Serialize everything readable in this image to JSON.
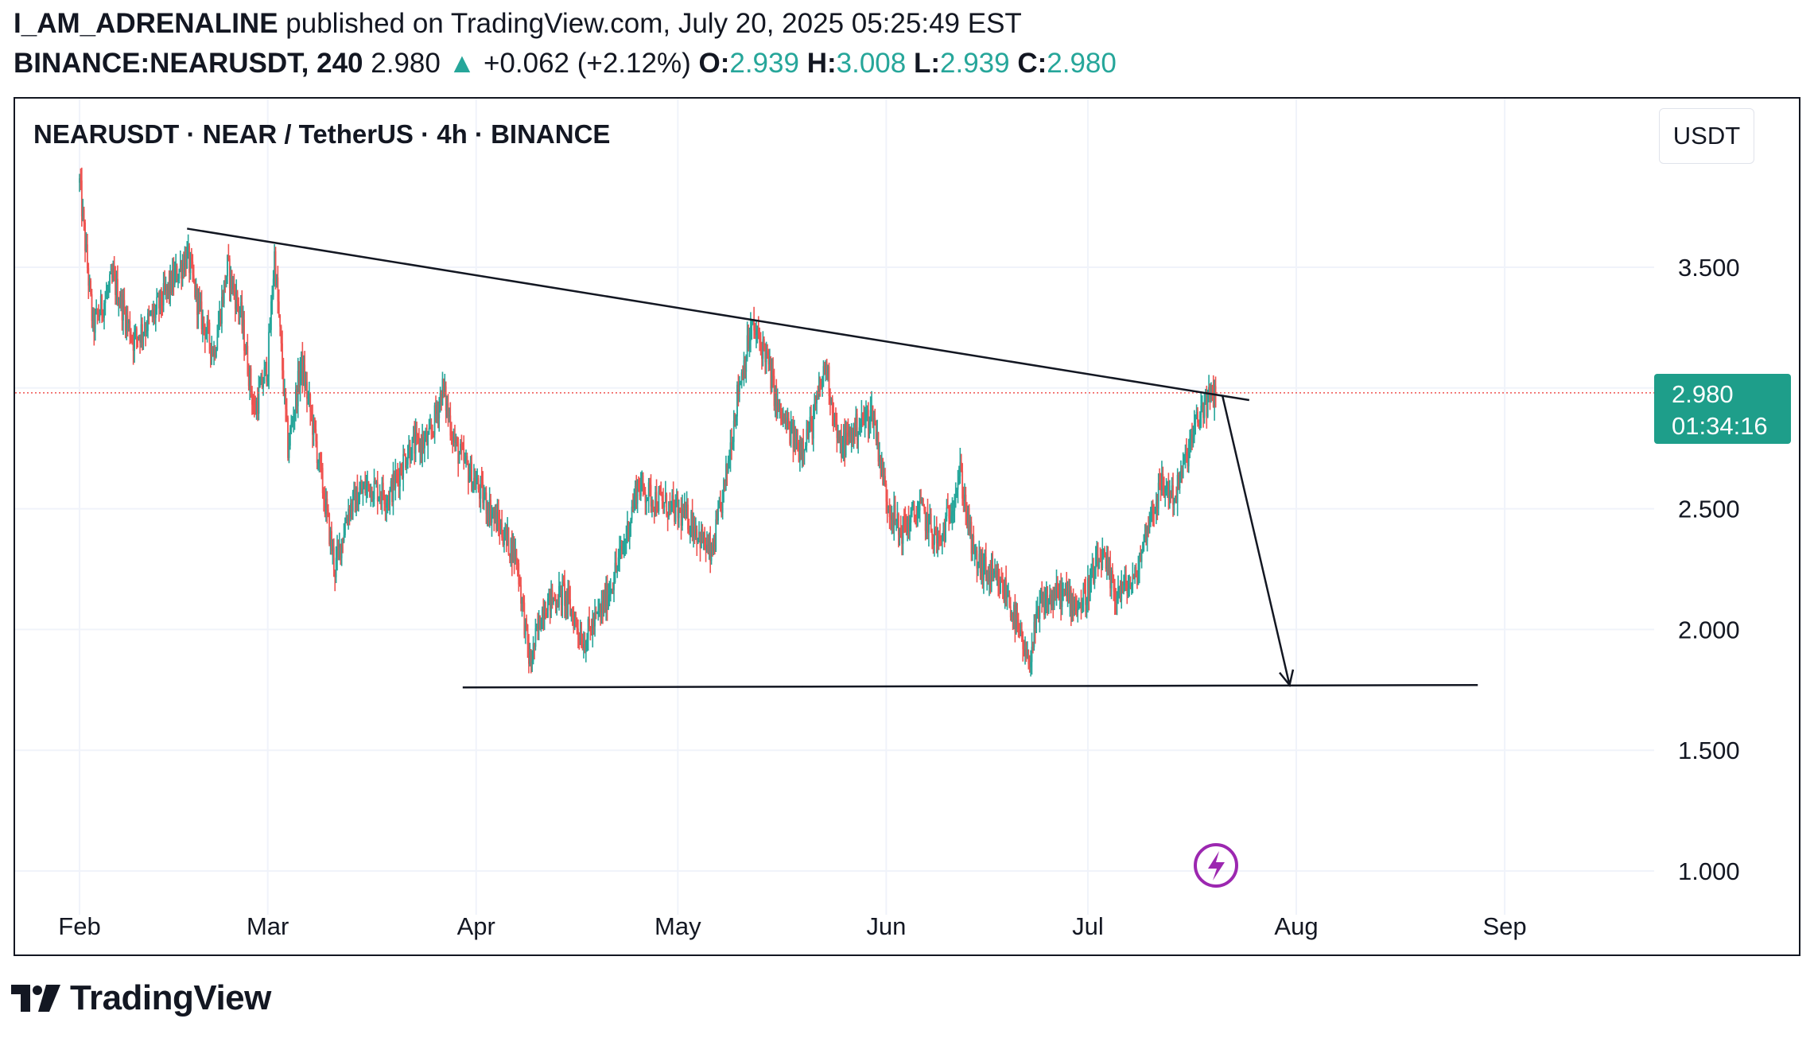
{
  "header": {
    "author": "I_AM_ADRENALINE",
    "published": " published on TradingView.com, July 20, 2025 05:25:49 EST",
    "symbol_interval": "BINANCE:NEARUSDT, 240",
    "last": "2.980",
    "triangle": "▲",
    "change": "+0.062 (+2.12%)",
    "o_label": "O:",
    "o_val": "2.939",
    "h_label": "H:",
    "h_val": "3.008",
    "l_label": "L:",
    "l_val": "2.939",
    "c_label": "C:",
    "c_val": "2.980"
  },
  "chart_title": "NEARUSDT · NEAR / TetherUS · 4h · BINANCE",
  "currency": "USDT",
  "price_tag": {
    "price": "2.980",
    "countdown": "01:34:16"
  },
  "logo_text": "TradingView",
  "colors": {
    "up": "#26a69a",
    "down": "#ef5350",
    "price_line": "#ef5350",
    "tag": "#1e9e8a",
    "lightning": "#9c27b0"
  },
  "chart_data": {
    "type": "candlestick",
    "title": "NEARUSDT · NEAR / TetherUS · 4h · BINANCE",
    "x_ticks": [
      "Feb",
      "Mar",
      "Apr",
      "May",
      "Jun",
      "Jul",
      "Aug",
      "Sep"
    ],
    "y_ticks": [
      "3.500",
      "2.500",
      "2.000",
      "1.500",
      "1.000"
    ],
    "y_range": [
      0.85,
      4.0
    ],
    "x_range": [
      "2025-01-31",
      "2025-09-10"
    ],
    "last_price": 2.98,
    "close_series": [
      [
        "2025-02-01",
        3.85
      ],
      [
        "2025-02-03",
        3.25
      ],
      [
        "2025-02-06",
        3.45
      ],
      [
        "2025-02-09",
        3.2
      ],
      [
        "2025-02-12",
        3.3
      ],
      [
        "2025-02-15",
        3.45
      ],
      [
        "2025-02-17",
        3.55
      ],
      [
        "2025-02-19",
        3.3
      ],
      [
        "2025-02-21",
        3.15
      ],
      [
        "2025-02-23",
        3.5
      ],
      [
        "2025-02-25",
        3.3
      ],
      [
        "2025-02-27",
        2.9
      ],
      [
        "2025-03-01",
        3.1
      ],
      [
        "2025-03-02",
        3.55
      ],
      [
        "2025-03-04",
        2.75
      ],
      [
        "2025-03-06",
        3.1
      ],
      [
        "2025-03-08",
        2.8
      ],
      [
        "2025-03-11",
        2.25
      ],
      [
        "2025-03-13",
        2.5
      ],
      [
        "2025-03-16",
        2.6
      ],
      [
        "2025-03-19",
        2.55
      ],
      [
        "2025-03-22",
        2.75
      ],
      [
        "2025-03-25",
        2.78
      ],
      [
        "2025-03-27",
        3.0
      ],
      [
        "2025-03-29",
        2.75
      ],
      [
        "2025-04-01",
        2.6
      ],
      [
        "2025-04-04",
        2.45
      ],
      [
        "2025-04-07",
        2.3
      ],
      [
        "2025-04-09",
        1.85
      ],
      [
        "2025-04-11",
        2.1
      ],
      [
        "2025-04-14",
        2.15
      ],
      [
        "2025-04-17",
        1.95
      ],
      [
        "2025-04-20",
        2.1
      ],
      [
        "2025-04-23",
        2.35
      ],
      [
        "2025-04-25",
        2.6
      ],
      [
        "2025-04-27",
        2.55
      ],
      [
        "2025-04-30",
        2.5
      ],
      [
        "2025-05-03",
        2.45
      ],
      [
        "2025-05-06",
        2.3
      ],
      [
        "2025-05-08",
        2.6
      ],
      [
        "2025-05-10",
        3.0
      ],
      [
        "2025-05-12",
        3.25
      ],
      [
        "2025-05-14",
        3.15
      ],
      [
        "2025-05-16",
        2.9
      ],
      [
        "2025-05-19",
        2.75
      ],
      [
        "2025-05-21",
        2.85
      ],
      [
        "2025-05-23",
        3.1
      ],
      [
        "2025-05-25",
        2.75
      ],
      [
        "2025-05-28",
        2.85
      ],
      [
        "2025-05-30",
        2.9
      ],
      [
        "2025-06-01",
        2.55
      ],
      [
        "2025-06-03",
        2.4
      ],
      [
        "2025-06-06",
        2.5
      ],
      [
        "2025-06-09",
        2.35
      ],
      [
        "2025-06-12",
        2.65
      ],
      [
        "2025-06-14",
        2.3
      ],
      [
        "2025-06-17",
        2.2
      ],
      [
        "2025-06-19",
        2.15
      ],
      [
        "2025-06-22",
        1.85
      ],
      [
        "2025-06-24",
        2.1
      ],
      [
        "2025-06-27",
        2.15
      ],
      [
        "2025-06-30",
        2.1
      ],
      [
        "2025-07-03",
        2.3
      ],
      [
        "2025-07-05",
        2.15
      ],
      [
        "2025-07-08",
        2.2
      ],
      [
        "2025-07-10",
        2.45
      ],
      [
        "2025-07-12",
        2.6
      ],
      [
        "2025-07-14",
        2.55
      ],
      [
        "2025-07-16",
        2.75
      ],
      [
        "2025-07-18",
        2.92
      ],
      [
        "2025-07-20",
        2.98
      ]
    ],
    "drawings": {
      "descending_trendline": [
        [
          "2025-02-17",
          3.66
        ],
        [
          "2025-07-25",
          2.95
        ]
      ],
      "support_line": [
        [
          "2025-03-30",
          1.76
        ],
        [
          "2025-08-28",
          1.77
        ]
      ],
      "projection_arrow": [
        [
          "2025-07-21",
          2.97
        ],
        [
          "2025-07-31",
          1.77
        ]
      ]
    },
    "grid": true
  }
}
